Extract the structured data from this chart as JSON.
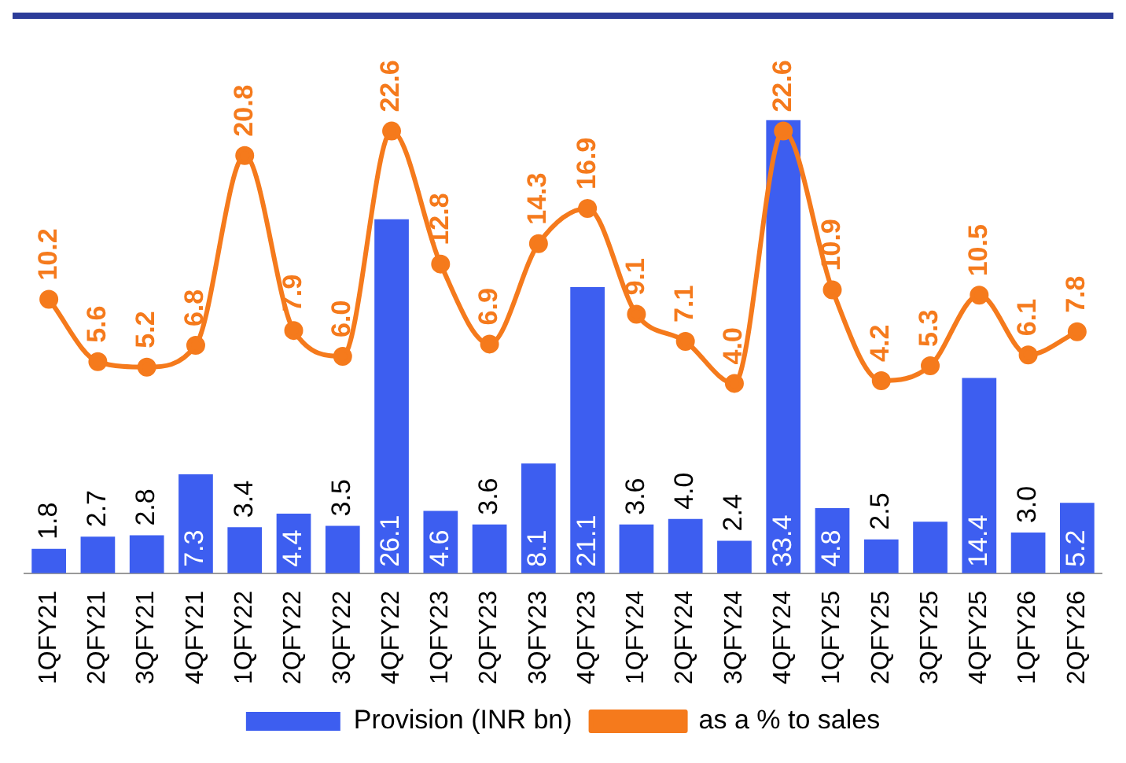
{
  "chart_data": {
    "type": "bar",
    "categories": [
      "1QFY21",
      "2QFY21",
      "3QFY21",
      "4QFY21",
      "1QFY22",
      "2QFY22",
      "3QFY22",
      "4QFY22",
      "1QFY23",
      "2QFY23",
      "3QFY23",
      "4QFY23",
      "1QFY24",
      "2QFY24",
      "3QFY24",
      "4QFY24",
      "1QFY25",
      "2QFY25",
      "3QFY25",
      "4QFY25",
      "1QFY26",
      "2QFY26"
    ],
    "series": [
      {
        "name": "Provision (INR bn)",
        "type": "bar",
        "color": "#3d5ef0",
        "values": [
          1.8,
          2.7,
          2.8,
          7.3,
          3.4,
          4.4,
          3.5,
          26.1,
          4.6,
          3.6,
          8.1,
          21.1,
          3.6,
          4.0,
          2.4,
          33.4,
          4.8,
          2.5,
          3.8,
          14.4,
          3.0,
          5.2
        ],
        "value_labels": [
          "1.8",
          "2.7",
          "2.8",
          "7.3",
          "3.4",
          "4.4",
          "3.5",
          "26.1",
          "4.6",
          "3.6",
          "8.1",
          "21.1",
          "3.6",
          "4.0",
          "2.4",
          "33.4",
          "4.8",
          "2.5",
          null,
          "14.4",
          "3.0",
          "5.2"
        ]
      },
      {
        "name": "as a % to sales",
        "type": "line",
        "axis": "y2",
        "color": "#f57a1c",
        "values": [
          10.2,
          5.6,
          5.2,
          6.8,
          20.8,
          7.9,
          6.0,
          22.6,
          12.8,
          6.9,
          14.3,
          16.9,
          9.1,
          7.1,
          4.0,
          22.6,
          10.9,
          4.2,
          5.3,
          10.5,
          6.1,
          7.8
        ],
        "value_labels": [
          "10.2",
          "5.6",
          "5.2",
          "6.8",
          "20.8",
          "7.9",
          "6.0",
          "22.6",
          "12.8",
          "6.9",
          "14.3",
          "16.9",
          "9.1",
          "7.1",
          "4.0",
          "22.6",
          "10.9",
          "4.2",
          "5.3",
          "10.5",
          "6.1",
          "7.8"
        ]
      }
    ],
    "legend": "bottom",
    "marker": "circle",
    "grid": false,
    "tick_labels": "x"
  }
}
